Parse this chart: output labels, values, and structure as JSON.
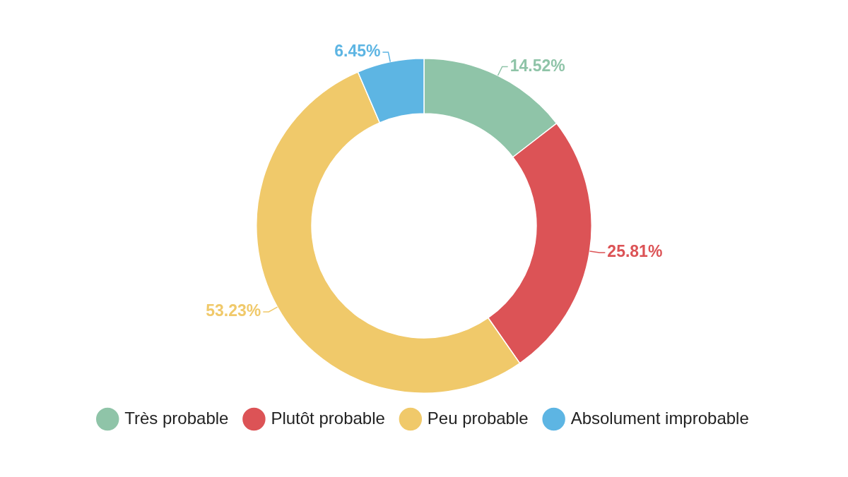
{
  "chart_data": {
    "type": "donut",
    "categories": [
      "Très probable",
      "Plutôt probable",
      "Peu probable",
      "Absolument improbable"
    ],
    "values": [
      14.52,
      25.81,
      53.23,
      6.45
    ],
    "value_labels": [
      "14.52%",
      "25.81%",
      "53.23%",
      "6.45%"
    ],
    "colors": [
      "#8fc4a8",
      "#dc5356",
      "#f0c96a",
      "#5db5e3"
    ],
    "legend": "bottom"
  }
}
